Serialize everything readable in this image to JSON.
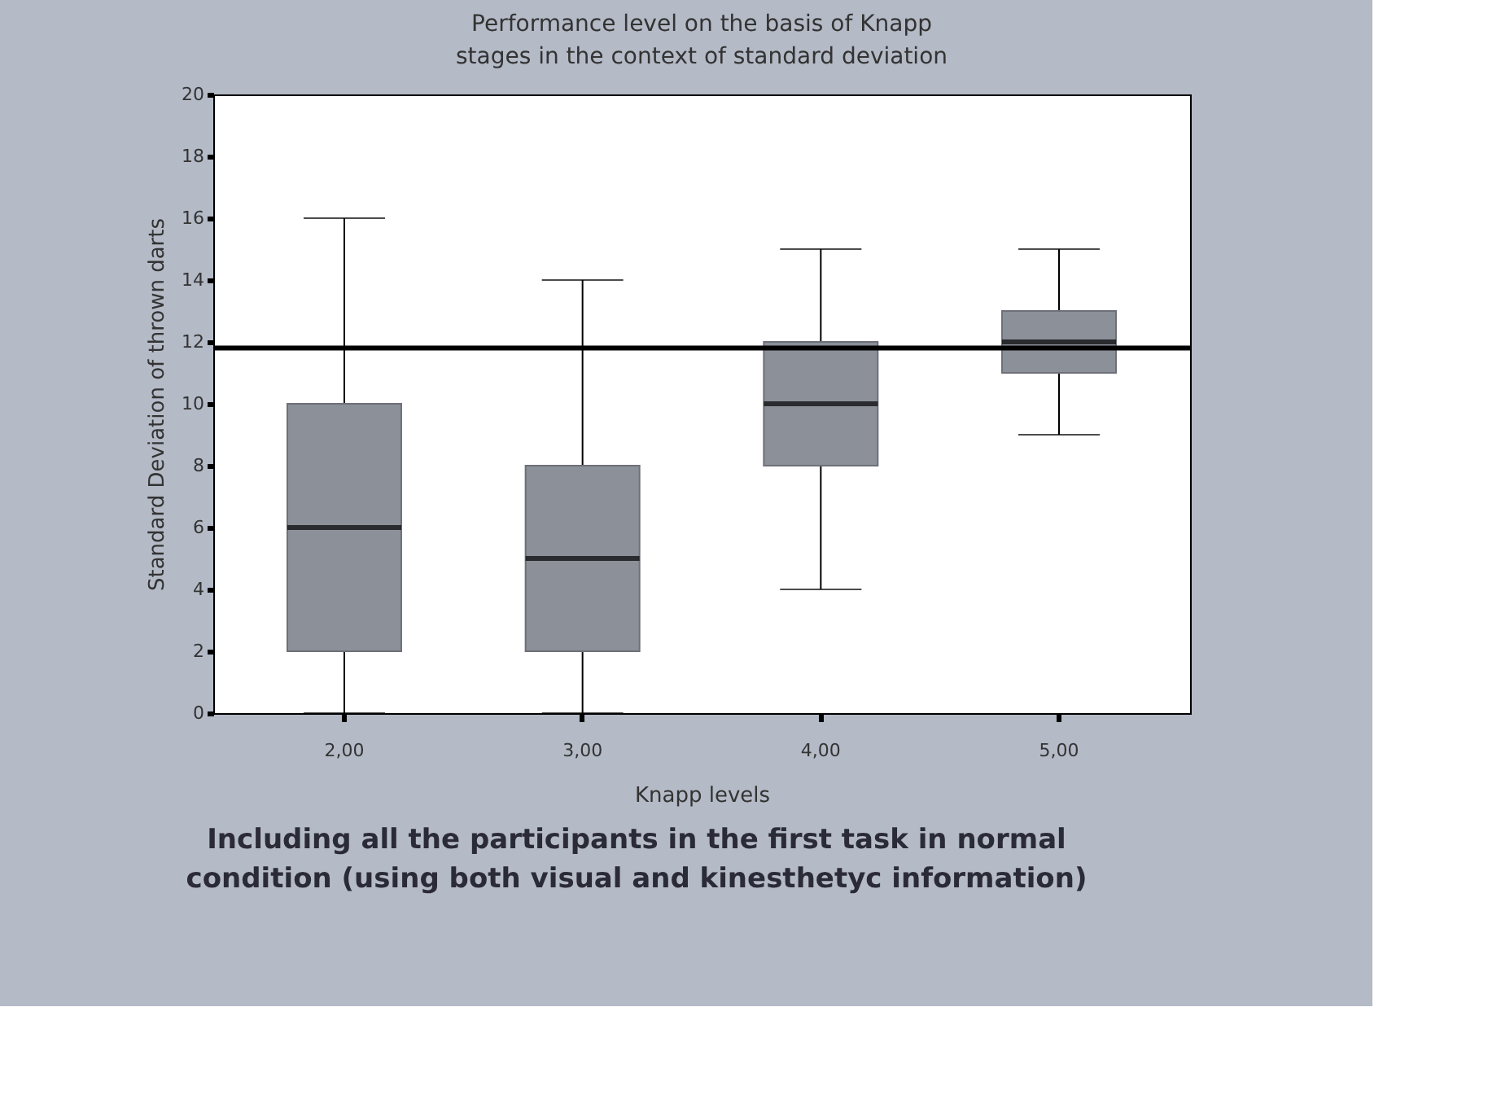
{
  "chart_data": {
    "type": "box",
    "title": "Performance level on the basis of Knapp stages in the context of standard deviation",
    "xlabel": "Knapp levels",
    "ylabel": "Standard Deviation of thrown darts",
    "categories": [
      "2,00",
      "3,00",
      "4,00",
      "5,00"
    ],
    "series": [
      {
        "color": "#8c9099",
        "boxes": [
          {
            "low": 0,
            "q1": 2,
            "median": 6,
            "q3": 10,
            "high": 16
          },
          {
            "low": 0,
            "q1": 2,
            "median": 5,
            "q3": 8,
            "high": 14
          },
          {
            "low": 4,
            "q1": 8,
            "median": 10,
            "q3": 12,
            "high": 15
          },
          {
            "low": 9,
            "q1": 11,
            "median": 12,
            "q3": 13,
            "high": 15
          }
        ]
      }
    ],
    "ylim": [
      0,
      20
    ],
    "yticks": [
      0,
      2,
      4,
      6,
      8,
      10,
      12,
      14,
      16,
      18,
      20
    ],
    "ref_lines": [
      {
        "axis": "y",
        "value": 11.8,
        "color": "#000000"
      }
    ],
    "annotations": [
      "Including all the participants in the first task in normal condition (using both visual and kinesthetyc information)"
    ]
  }
}
